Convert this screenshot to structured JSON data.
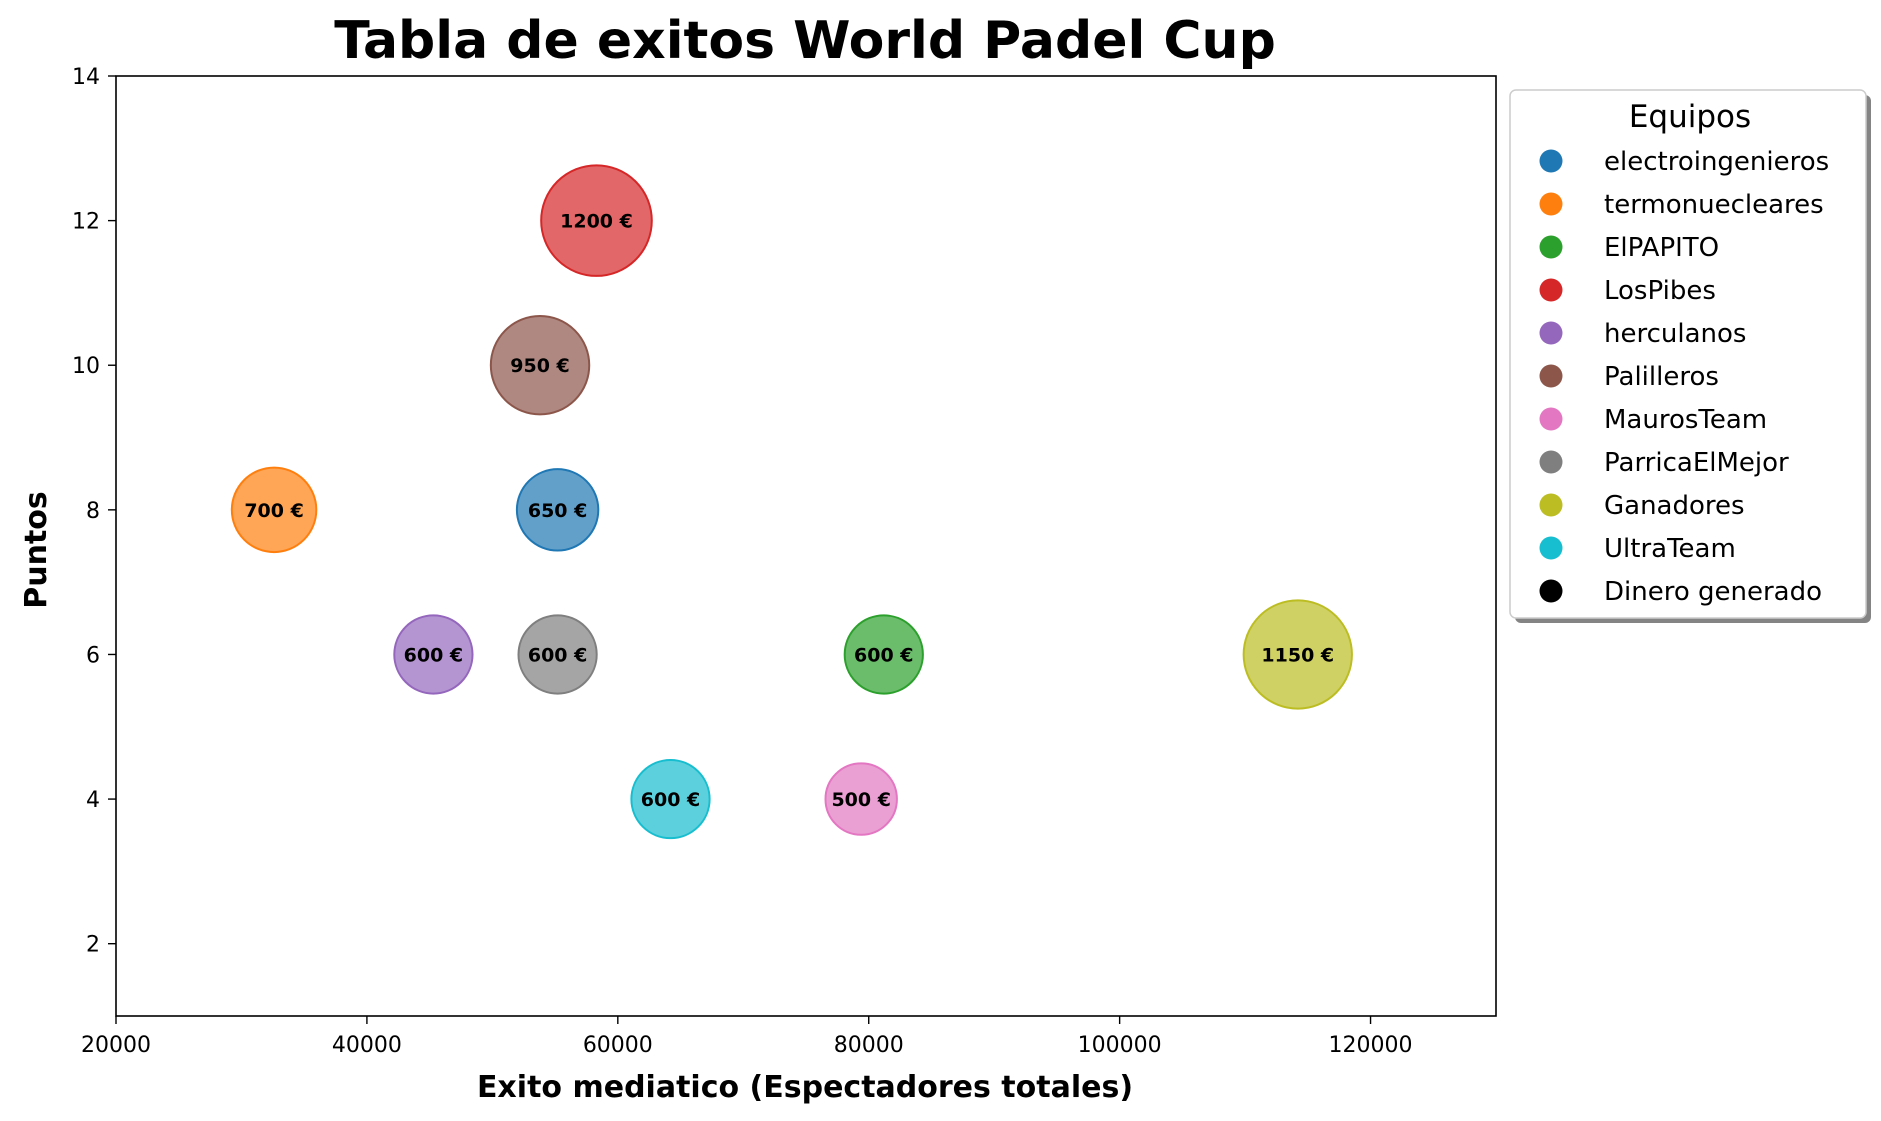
{
  "chart_data": {
    "type": "scatter",
    "title": "Tabla de exitos World Padel Cup",
    "xlabel": "Exito mediatico (Espectadores totales)",
    "ylabel": "Puntos",
    "xlim": [
      20000,
      130000
    ],
    "ylim": [
      1,
      14
    ],
    "xticks": [
      20000,
      40000,
      60000,
      80000,
      100000,
      120000
    ],
    "yticks": [
      2,
      4,
      6,
      8,
      10,
      12,
      14
    ],
    "xtick_labels": [
      "20000",
      "40000",
      "60000",
      "80000",
      "100000",
      "120000"
    ],
    "ytick_labels": [
      "2",
      "4",
      "6",
      "8",
      "10",
      "12",
      "14"
    ],
    "grid": false,
    "legend": {
      "title": "Equipos",
      "placement": "outside-top-right",
      "entries": [
        {
          "label": "electroingenieros",
          "color": "#1f77b4"
        },
        {
          "label": "termonuecleares",
          "color": "#ff7f0e"
        },
        {
          "label": "ElPAPITO",
          "color": "#2ca02c"
        },
        {
          "label": "LosPibes",
          "color": "#d62728"
        },
        {
          "label": "herculanos",
          "color": "#9467bd"
        },
        {
          "label": "Palilleros",
          "color": "#8c564b"
        },
        {
          "label": "MaurosTeam",
          "color": "#e377c2"
        },
        {
          "label": "ParricaElMejor",
          "color": "#7f7f7f"
        },
        {
          "label": "Ganadores",
          "color": "#bcbd22"
        },
        {
          "label": "UltraTeam",
          "color": "#17becf"
        },
        {
          "label": "Dinero generado",
          "color": "#000000"
        }
      ]
    },
    "series": [
      {
        "name": "electroingenieros",
        "color": "#1f77b4",
        "x": 55200,
        "y": 8,
        "money": 650,
        "label": "650 €"
      },
      {
        "name": "termonuecleares",
        "color": "#ff7f0e",
        "x": 32600,
        "y": 8,
        "money": 700,
        "label": "700 €"
      },
      {
        "name": "ElPAPITO",
        "color": "#2ca02c",
        "x": 81200,
        "y": 6,
        "money": 600,
        "label": "600 €"
      },
      {
        "name": "LosPibes",
        "color": "#d62728",
        "x": 58300,
        "y": 12,
        "money": 1200,
        "label": "1200 €"
      },
      {
        "name": "herculanos",
        "color": "#9467bd",
        "x": 45300,
        "y": 6,
        "money": 600,
        "label": "600 €"
      },
      {
        "name": "Palilleros",
        "color": "#8c564b",
        "x": 53800,
        "y": 10,
        "money": 950,
        "label": "950 €"
      },
      {
        "name": "MaurosTeam",
        "color": "#e377c2",
        "x": 79400,
        "y": 4,
        "money": 500,
        "label": "500 €"
      },
      {
        "name": "ParricaElMejor",
        "color": "#7f7f7f",
        "x": 55200,
        "y": 6,
        "money": 600,
        "label": "600 €"
      },
      {
        "name": "Ganadores",
        "color": "#bcbd22",
        "x": 114200,
        "y": 6,
        "money": 1150,
        "label": "1150 €"
      },
      {
        "name": "UltraTeam",
        "color": "#17becf",
        "x": 64200,
        "y": 4,
        "money": 600,
        "label": "600 €"
      }
    ]
  }
}
